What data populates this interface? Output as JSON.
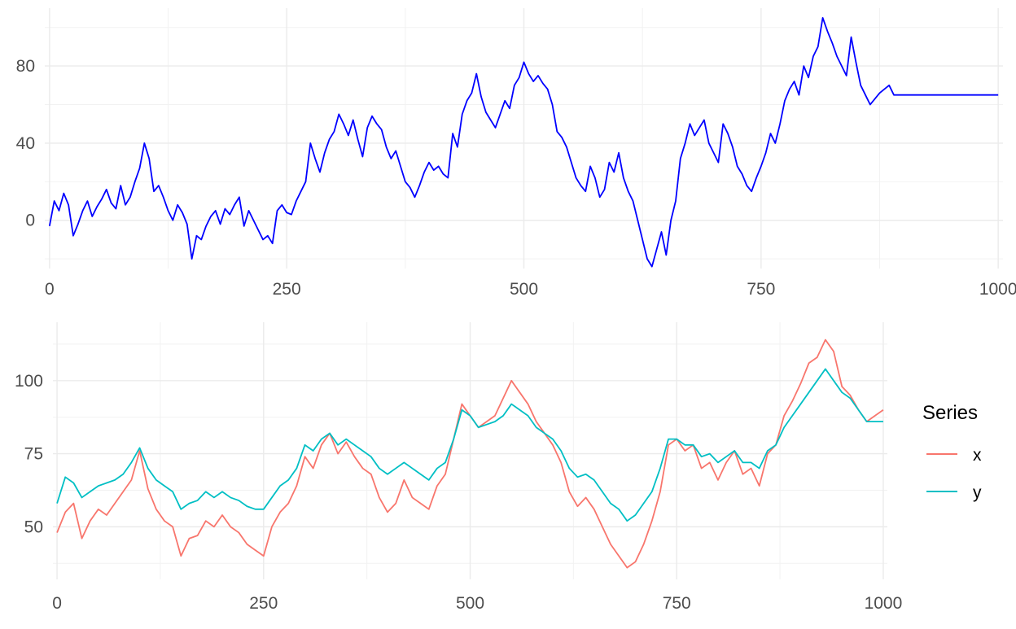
{
  "chart_data": [
    {
      "type": "line",
      "title": "",
      "xlabel": "",
      "ylabel": "",
      "xlim": [
        -5,
        1005
      ],
      "ylim": [
        -25,
        110
      ],
      "x_ticks": [
        0,
        250,
        500,
        750,
        1000
      ],
      "x_tick_labels": [
        "0",
        "250",
        "500",
        "750",
        "1000"
      ],
      "y_ticks": [
        0,
        40,
        80
      ],
      "y_tick_labels": [
        "0",
        "40",
        "80"
      ],
      "grid": true,
      "legend": "none",
      "series": [
        {
          "color": "#0000FF",
          "x": [
            0,
            5,
            10,
            15,
            20,
            25,
            30,
            35,
            40,
            45,
            50,
            55,
            60,
            65,
            70,
            75,
            80,
            85,
            90,
            95,
            100,
            105,
            110,
            115,
            120,
            125,
            130,
            135,
            140,
            145,
            150,
            155,
            160,
            165,
            170,
            175,
            180,
            185,
            190,
            195,
            200,
            205,
            210,
            215,
            220,
            225,
            230,
            235,
            240,
            245,
            250,
            255,
            260,
            265,
            270,
            275,
            280,
            285,
            290,
            295,
            300,
            305,
            310,
            315,
            320,
            325,
            330,
            335,
            340,
            345,
            350,
            355,
            360,
            365,
            370,
            375,
            380,
            385,
            390,
            395,
            400,
            405,
            410,
            415,
            420,
            425,
            430,
            435,
            440,
            445,
            450,
            455,
            460,
            465,
            470,
            475,
            480,
            485,
            490,
            495,
            500,
            505,
            510,
            515,
            520,
            525,
            530,
            535,
            540,
            545,
            550,
            555,
            560,
            565,
            570,
            575,
            580,
            585,
            590,
            595,
            600,
            605,
            610,
            615,
            620,
            625,
            630,
            635,
            640,
            645,
            650,
            655,
            660,
            665,
            670,
            675,
            680,
            685,
            690,
            695,
            700,
            705,
            710,
            715,
            720,
            725,
            730,
            735,
            740,
            745,
            750,
            755,
            760,
            765,
            770,
            775,
            780,
            785,
            790,
            795,
            800,
            805,
            810,
            815,
            820,
            825,
            830,
            835,
            840,
            845,
            850,
            855,
            860,
            865,
            870,
            875,
            880,
            885,
            890,
            895,
            900,
            905,
            910,
            915,
            920,
            925,
            930,
            935,
            940,
            945,
            950,
            955,
            960,
            965,
            970,
            975,
            980,
            985,
            990,
            995,
            1000
          ],
          "values": [
            -3,
            10,
            5,
            14,
            8,
            -8,
            -2,
            5,
            10,
            2,
            7,
            11,
            16,
            9,
            6,
            18,
            8,
            12,
            20,
            27,
            40,
            32,
            15,
            18,
            12,
            5,
            0,
            8,
            4,
            -2,
            -20,
            -8,
            -10,
            -3,
            2,
            5,
            -2,
            6,
            3,
            8,
            12,
            -3,
            5,
            0,
            -5,
            -10,
            -8,
            -12,
            5,
            8,
            4,
            3,
            10,
            15,
            20,
            40,
            32,
            25,
            35,
            42,
            46,
            55,
            50,
            44,
            52,
            42,
            33,
            48,
            54,
            50,
            47,
            38,
            32,
            36,
            28,
            20,
            17,
            12,
            18,
            25,
            30,
            26,
            28,
            24,
            22,
            45,
            38,
            55,
            62,
            66,
            76,
            64,
            56,
            52,
            48,
            55,
            62,
            58,
            70,
            74,
            82,
            76,
            72,
            75,
            71,
            68,
            60,
            46,
            43,
            38,
            30,
            22,
            18,
            15,
            28,
            22,
            12,
            16,
            30,
            25,
            35,
            22,
            15,
            10,
            0,
            -10,
            -20,
            -24,
            -15,
            -6,
            -18,
            0,
            10,
            32,
            40,
            50,
            44,
            48,
            52,
            40,
            35,
            30,
            50,
            45,
            38,
            28,
            24,
            18,
            15,
            22,
            28,
            35,
            45,
            40,
            50,
            62,
            68,
            72,
            65,
            80,
            74,
            85,
            90,
            105,
            98,
            92,
            85,
            80,
            75,
            95,
            82,
            70,
            65,
            60,
            63,
            66,
            68,
            70,
            65,
            65,
            65,
            65,
            65,
            65,
            65,
            65,
            65,
            65,
            65,
            65,
            65,
            65,
            65,
            65,
            65,
            65,
            65,
            65,
            65,
            65,
            65
          ]
        }
      ]
    },
    {
      "type": "line",
      "title": "",
      "xlabel": "",
      "ylabel": "",
      "xlim": [
        -5,
        1005
      ],
      "ylim": [
        32,
        120
      ],
      "x_ticks": [
        0,
        250,
        500,
        750,
        1000
      ],
      "x_tick_labels": [
        "0",
        "250",
        "500",
        "750",
        "1000"
      ],
      "y_ticks": [
        50,
        75,
        100
      ],
      "y_tick_labels": [
        "50",
        "75",
        "100"
      ],
      "grid": true,
      "legend": "right",
      "legend_title": "Series",
      "series": [
        {
          "name": "x",
          "color": "#F8766D",
          "x": [
            0,
            10,
            20,
            30,
            40,
            50,
            60,
            70,
            80,
            90,
            100,
            110,
            120,
            130,
            140,
            150,
            160,
            170,
            180,
            190,
            200,
            210,
            220,
            230,
            240,
            250,
            260,
            270,
            280,
            290,
            300,
            310,
            320,
            330,
            340,
            350,
            360,
            370,
            380,
            390,
            400,
            410,
            420,
            430,
            440,
            450,
            460,
            470,
            480,
            490,
            500,
            510,
            520,
            530,
            540,
            550,
            560,
            570,
            580,
            590,
            600,
            610,
            620,
            630,
            640,
            650,
            660,
            670,
            680,
            690,
            700,
            710,
            720,
            730,
            740,
            750,
            760,
            770,
            780,
            790,
            800,
            810,
            820,
            830,
            840,
            850,
            860,
            870,
            880,
            890,
            900,
            910,
            920,
            930,
            940,
            950,
            960,
            970,
            980,
            990,
            1000
          ],
          "values": [
            48,
            55,
            58,
            46,
            52,
            56,
            54,
            58,
            62,
            66,
            76,
            63,
            56,
            52,
            50,
            40,
            46,
            47,
            52,
            50,
            54,
            50,
            48,
            44,
            42,
            40,
            50,
            55,
            58,
            64,
            74,
            70,
            78,
            82,
            75,
            79,
            74,
            70,
            68,
            60,
            55,
            58,
            66,
            60,
            58,
            56,
            64,
            68,
            80,
            92,
            88,
            84,
            86,
            88,
            94,
            100,
            96,
            92,
            86,
            82,
            78,
            72,
            62,
            57,
            60,
            56,
            50,
            44,
            40,
            36,
            38,
            44,
            52,
            62,
            78,
            80,
            76,
            78,
            70,
            72,
            66,
            72,
            76,
            68,
            70,
            64,
            75,
            78,
            88,
            93,
            99,
            106,
            108,
            114,
            110,
            98,
            95,
            90,
            86,
            88,
            90
          ]
        },
        {
          "name": "y",
          "color": "#00BFC4",
          "x": [
            0,
            10,
            20,
            30,
            40,
            50,
            60,
            70,
            80,
            90,
            100,
            110,
            120,
            130,
            140,
            150,
            160,
            170,
            180,
            190,
            200,
            210,
            220,
            230,
            240,
            250,
            260,
            270,
            280,
            290,
            300,
            310,
            320,
            330,
            340,
            350,
            360,
            370,
            380,
            390,
            400,
            410,
            420,
            430,
            440,
            450,
            460,
            470,
            480,
            490,
            500,
            510,
            520,
            530,
            540,
            550,
            560,
            570,
            580,
            590,
            600,
            610,
            620,
            630,
            640,
            650,
            660,
            670,
            680,
            690,
            700,
            710,
            720,
            730,
            740,
            750,
            760,
            770,
            780,
            790,
            800,
            810,
            820,
            830,
            840,
            850,
            860,
            870,
            880,
            890,
            900,
            910,
            920,
            930,
            940,
            950,
            960,
            970,
            980,
            990,
            1000
          ],
          "values": [
            58,
            67,
            65,
            60,
            62,
            64,
            65,
            66,
            68,
            72,
            77,
            70,
            66,
            64,
            62,
            56,
            58,
            59,
            62,
            60,
            62,
            60,
            59,
            57,
            56,
            56,
            60,
            64,
            66,
            70,
            78,
            76,
            80,
            82,
            78,
            80,
            78,
            76,
            74,
            70,
            68,
            70,
            72,
            70,
            68,
            66,
            70,
            72,
            80,
            90,
            88,
            84,
            85,
            86,
            88,
            92,
            90,
            88,
            84,
            82,
            80,
            76,
            70,
            67,
            68,
            66,
            62,
            58,
            56,
            52,
            54,
            58,
            62,
            70,
            80,
            80,
            78,
            78,
            74,
            75,
            72,
            74,
            76,
            72,
            72,
            70,
            76,
            78,
            84,
            88,
            92,
            96,
            100,
            104,
            100,
            96,
            94,
            90,
            86,
            86,
            86
          ]
        }
      ]
    }
  ]
}
